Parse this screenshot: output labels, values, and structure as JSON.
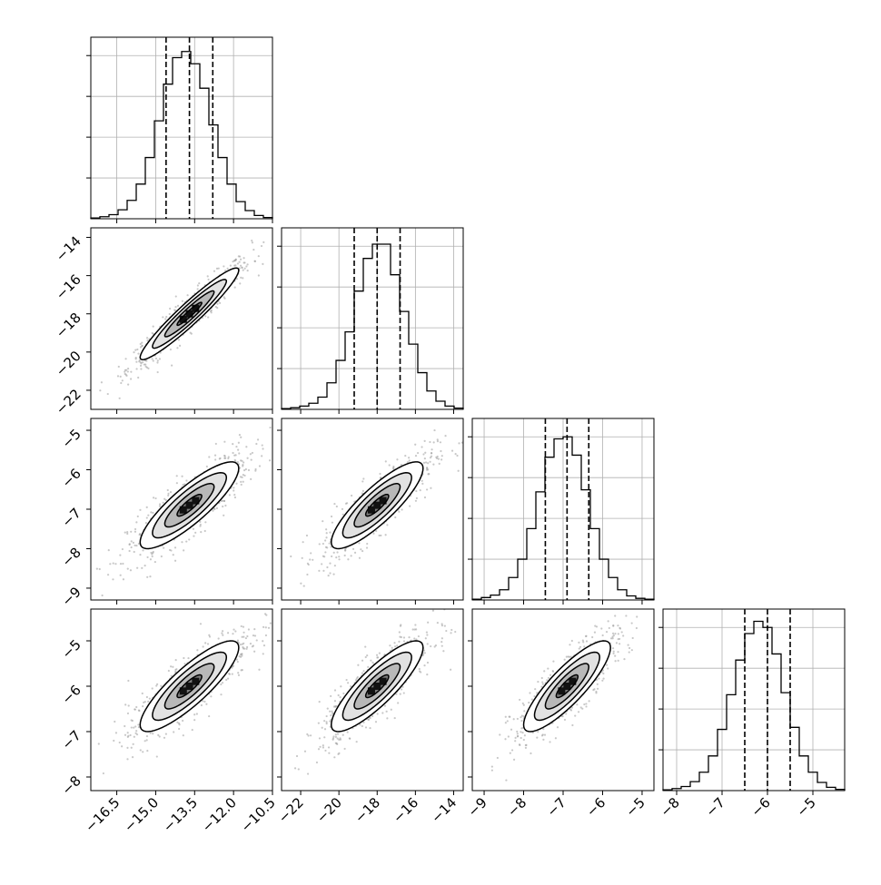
{
  "chart_data": {
    "type": "corner",
    "title": "",
    "parameters": [
      {
        "index": 0,
        "range": [
          -17.5,
          -10.5
        ],
        "ticks": [
          -16.5,
          -15.0,
          -13.5,
          -12.0,
          -10.5
        ],
        "tick_labels": [
          "−16.5",
          "−15.0",
          "−13.5",
          "−12.0",
          "−10.5"
        ],
        "quantiles": [
          -14.6,
          -13.7,
          -12.8
        ],
        "mean": -13.7,
        "sd": 0.95
      },
      {
        "index": 1,
        "range": [
          -23.0,
          -13.5
        ],
        "ticks": [
          -22,
          -20,
          -18,
          -16,
          -14
        ],
        "tick_labels": [
          "−22",
          "−20",
          "−18",
          "−16",
          "−14"
        ],
        "quantiles": [
          -19.2,
          -18.0,
          -16.8
        ],
        "mean": -18.0,
        "sd": 1.2
      },
      {
        "index": 2,
        "range": [
          -9.3,
          -4.7
        ],
        "ticks": [
          -9,
          -8,
          -7,
          -6,
          -5
        ],
        "tick_labels": [
          "−9",
          "−8",
          "−7",
          "−6",
          "−5"
        ],
        "quantiles": [
          -7.45,
          -6.9,
          -6.35
        ],
        "mean": -6.9,
        "sd": 0.55
      },
      {
        "index": 3,
        "range": [
          -8.3,
          -4.3
        ],
        "ticks": [
          -8,
          -7,
          -6,
          -5
        ],
        "tick_labels": [
          "−8",
          "−7",
          "−6",
          "−5"
        ],
        "quantiles": [
          -6.5,
          -6.0,
          -5.5
        ],
        "mean": -6.0,
        "sd": 0.5
      }
    ],
    "histograms": [
      {
        "param": 0,
        "bin_edges": [
          -17.5,
          -17.15,
          -16.8,
          -16.45,
          -16.1,
          -15.75,
          -15.4,
          -15.05,
          -14.7,
          -14.35,
          -14.0,
          -13.65,
          -13.3,
          -12.95,
          -12.6,
          -12.25,
          -11.9,
          -11.55,
          -11.2,
          -10.85,
          -10.5
        ],
        "counts": [
          2,
          5,
          10,
          22,
          45,
          85,
          150,
          240,
          330,
          395,
          410,
          380,
          320,
          230,
          150,
          85,
          42,
          20,
          8,
          3
        ],
        "ymax": 445,
        "grid_counts": [
          100,
          200,
          300,
          400
        ]
      },
      {
        "param": 1,
        "bin_edges": [
          -23.0,
          -22.525,
          -22.05,
          -21.575,
          -21.1,
          -20.625,
          -20.15,
          -19.675,
          -19.2,
          -18.725,
          -18.25,
          -17.775,
          -17.3,
          -16.825,
          -16.35,
          -15.875,
          -15.4,
          -14.925,
          -14.45,
          -13.975,
          -13.5
        ],
        "counts": [
          2,
          4,
          8,
          15,
          30,
          65,
          120,
          190,
          290,
          370,
          405,
          405,
          330,
          240,
          160,
          90,
          45,
          20,
          8,
          3
        ],
        "ymax": 445,
        "grid_counts": [
          100,
          200,
          300,
          400
        ]
      },
      {
        "param": 2,
        "bin_edges": [
          -9.3,
          -9.07,
          -8.84,
          -8.61,
          -8.38,
          -8.15,
          -7.92,
          -7.69,
          -7.46,
          -7.23,
          -7.0,
          -6.77,
          -6.54,
          -6.31,
          -6.08,
          -5.85,
          -5.62,
          -5.39,
          -5.16,
          -4.93,
          -4.7
        ],
        "counts": [
          2,
          6,
          12,
          25,
          55,
          100,
          175,
          265,
          350,
          395,
          400,
          355,
          270,
          175,
          100,
          55,
          25,
          10,
          4,
          2
        ],
        "ymax": 445,
        "grid_counts": [
          100,
          200,
          300,
          400
        ]
      },
      {
        "param": 3,
        "bin_edges": [
          -8.3,
          -8.1,
          -7.9,
          -7.7,
          -7.5,
          -7.3,
          -7.1,
          -6.9,
          -6.7,
          -6.5,
          -6.3,
          -6.1,
          -5.9,
          -5.7,
          -5.5,
          -5.3,
          -5.1,
          -4.9,
          -4.7,
          -4.5,
          -4.3
        ],
        "counts": [
          2,
          5,
          10,
          22,
          45,
          85,
          150,
          235,
          320,
          385,
          415,
          400,
          335,
          240,
          155,
          85,
          45,
          20,
          8,
          3
        ],
        "ymax": 445,
        "grid_counts": [
          100,
          200,
          300,
          400
        ]
      }
    ],
    "pairs": [
      {
        "x_param": 0,
        "y_param": 1,
        "correlation": 0.95
      },
      {
        "x_param": 0,
        "y_param": 2,
        "correlation": 0.85
      },
      {
        "x_param": 1,
        "y_param": 2,
        "correlation": 0.85
      },
      {
        "x_param": 0,
        "y_param": 3,
        "correlation": 0.85
      },
      {
        "x_param": 1,
        "y_param": 3,
        "correlation": 0.85
      },
      {
        "x_param": 2,
        "y_param": 3,
        "correlation": 0.85
      }
    ],
    "contour_levels_sigma": [
      0.5,
      1.0,
      1.5,
      2.0
    ],
    "scatter_points_per_panel": 650,
    "grid": true,
    "line_color": "#000000",
    "grid_color": "#b0b0b0",
    "point_color": "#9a9a9a"
  }
}
